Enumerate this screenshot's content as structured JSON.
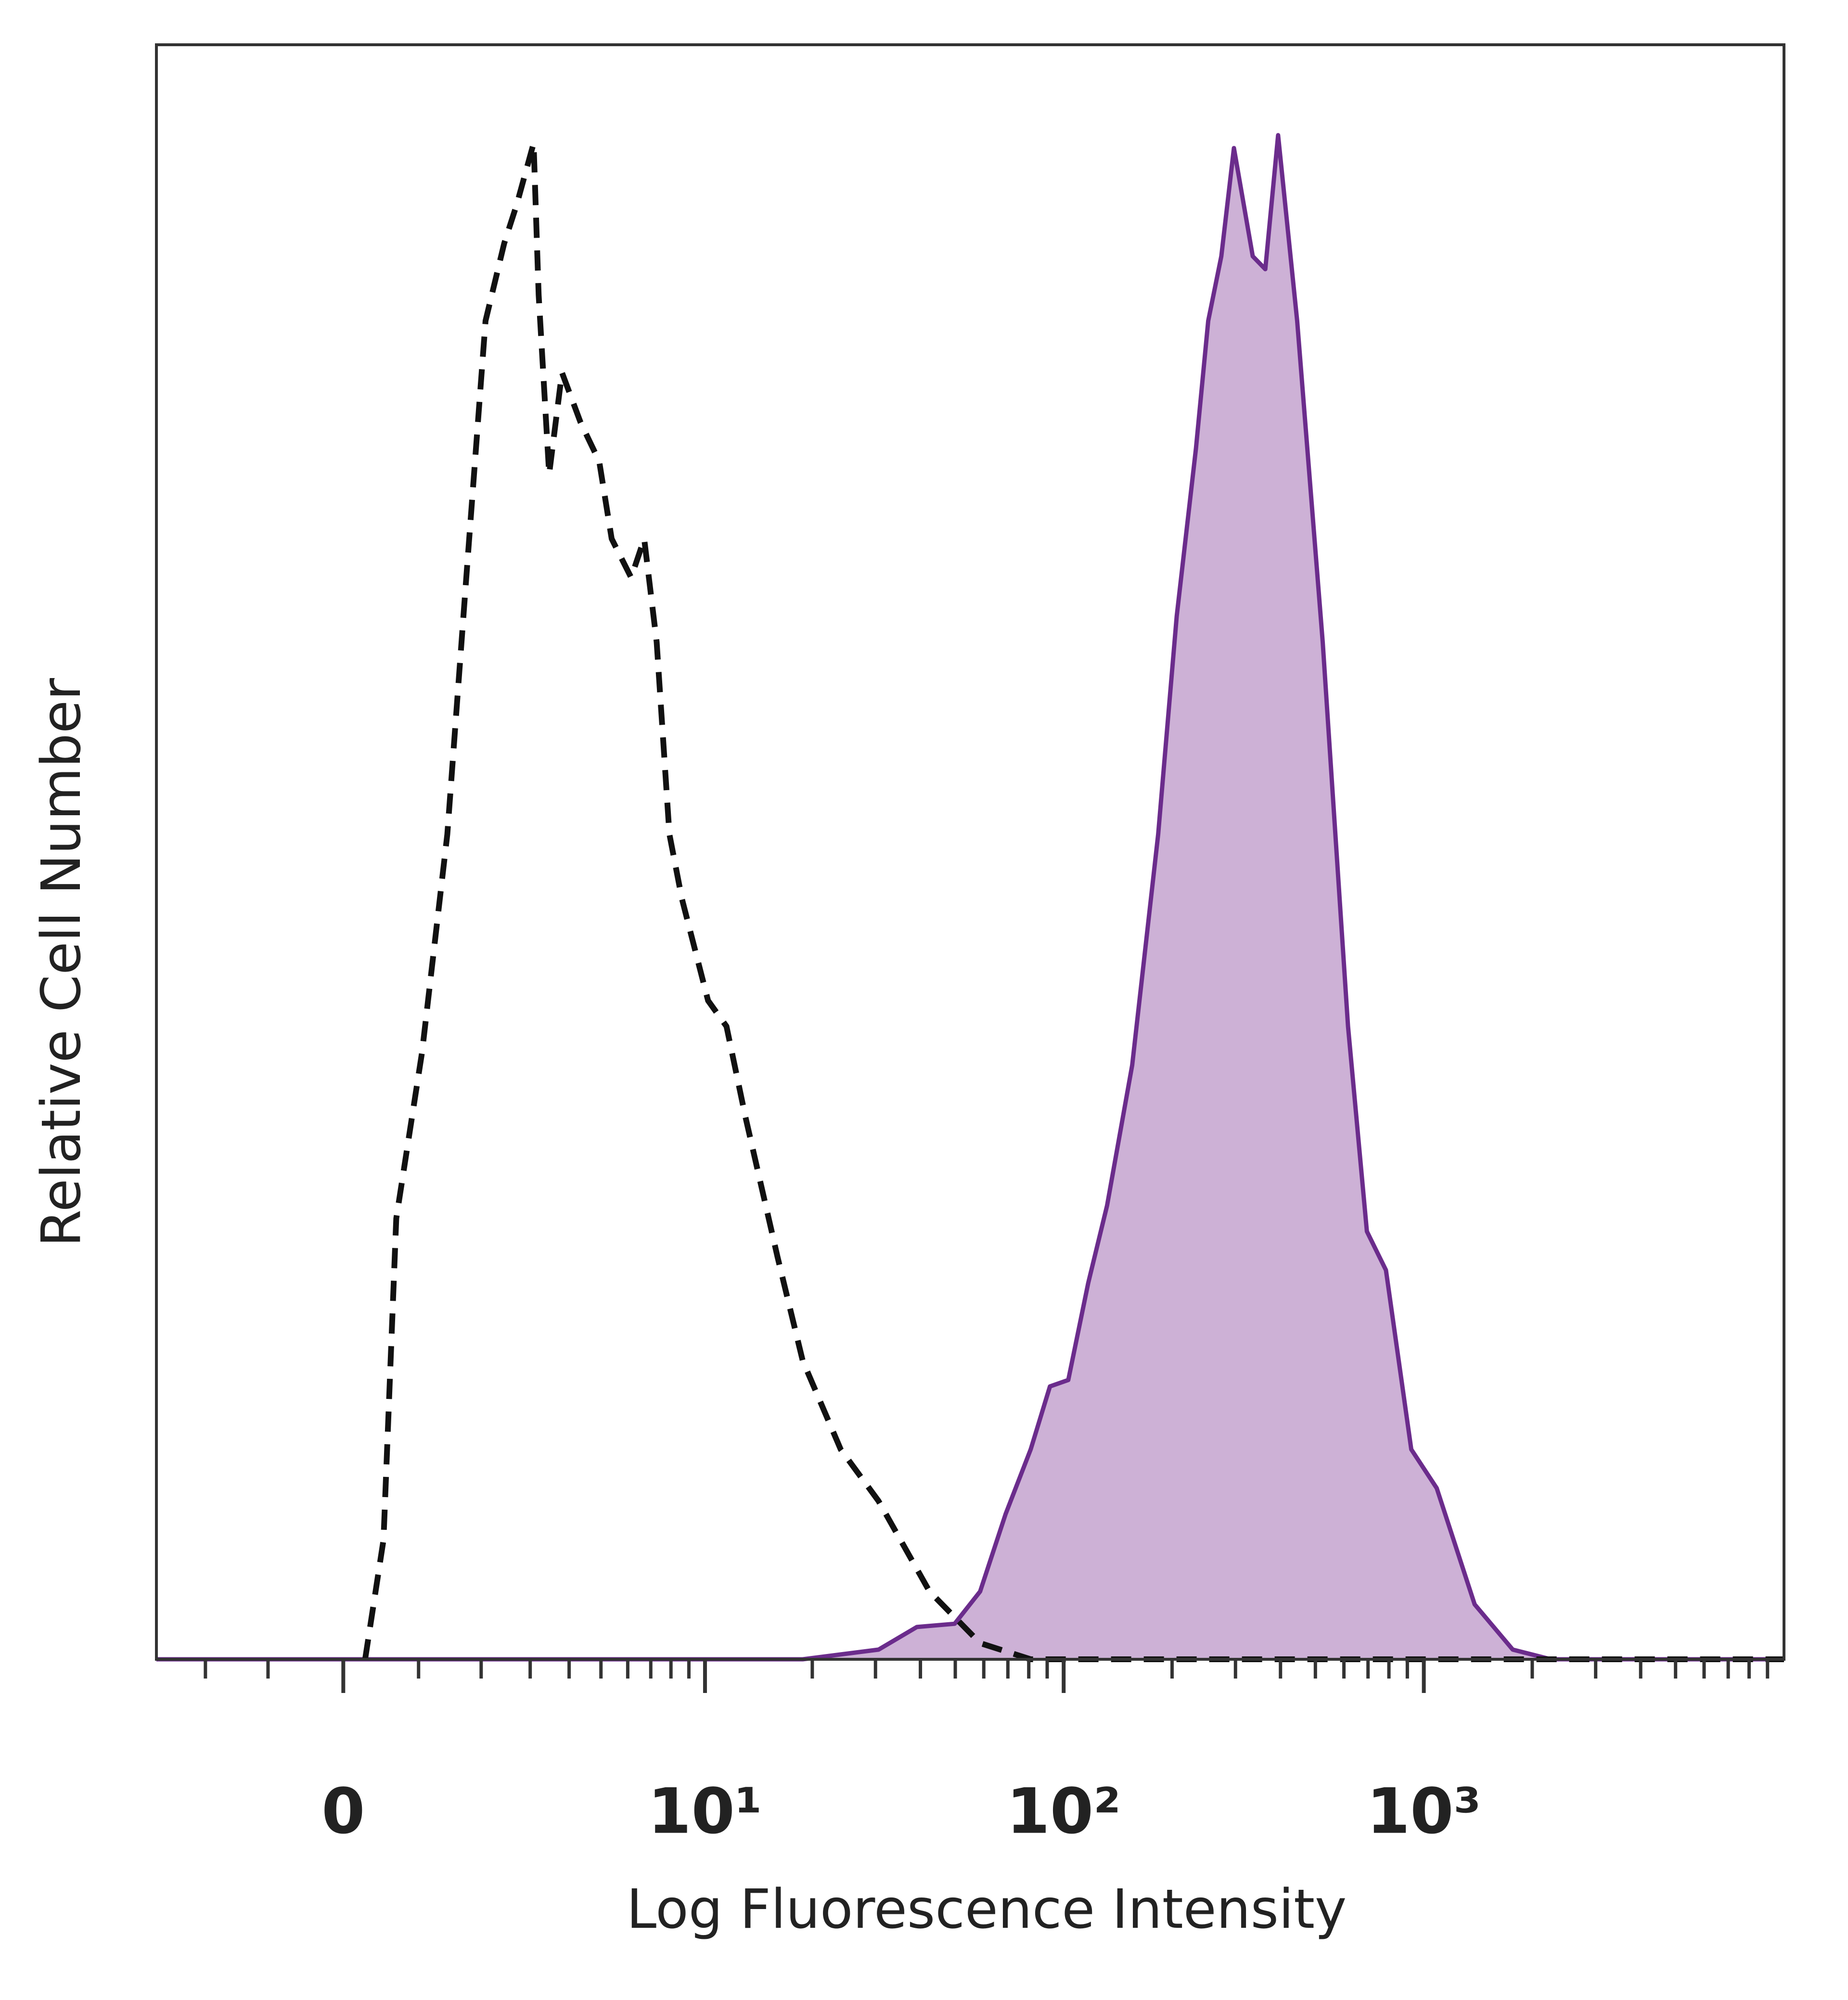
{
  "chart_data": {
    "type": "line",
    "xlabel": "Log Fluorescence Intensity",
    "ylabel": "Relative Cell Number",
    "xscale": "biexponential",
    "xlim": [
      -3,
      10000
    ],
    "ylim": [
      0,
      100
    ],
    "xticks": [
      0,
      {
        "value": 10,
        "label": "10¹"
      },
      {
        "value": 100,
        "label": "10²"
      },
      {
        "value": 1000,
        "label": "10³"
      }
    ],
    "xminorticks": [
      -2,
      -1,
      1,
      2,
      3,
      4,
      5,
      6,
      7,
      8,
      9,
      20,
      30,
      40,
      50,
      60,
      70,
      80,
      90,
      200,
      300,
      400,
      500,
      600,
      700,
      800,
      900,
      2000,
      3000,
      4000,
      5000,
      6000,
      7000,
      8000,
      9000
    ],
    "series": [
      {
        "color": "#6b2c8c",
        "fill": "#cdb1d6",
        "linestyle": "solid",
        "x": [
          -3,
          18.8,
          30.6,
          39.1,
          49.8,
          58.6,
          69,
          81,
          91.6,
          103,
          117,
          132,
          155,
          183,
          206,
          233,
          252,
          274,
          297,
          335,
          363,
          394,
          445,
          524,
          616,
          695,
          785,
          923,
          1086,
          1384,
          1766,
          2252,
          10000
        ],
        "values": [
          0,
          0,
          0.6,
          2,
          2.2,
          4.2,
          9,
          13,
          16.9,
          17.3,
          23.3,
          28.1,
          36.8,
          51.1,
          64.6,
          75,
          82.9,
          86.9,
          93.6,
          86.9,
          86.1,
          94.4,
          82.9,
          63,
          39.2,
          26.5,
          24.1,
          13,
          10.6,
          3.4,
          0.6,
          0,
          0
        ]
      },
      {
        "color": "#111111",
        "linestyle": "dashed",
        "x": [
          0.28,
          0.52,
          0.69,
          1.05,
          1.43,
          1.74,
          2.08,
          2.44,
          2.7,
          3.08,
          3.2,
          3.46,
          3.8,
          4.34,
          4.94,
          5.38,
          6.14,
          6.7,
          7.28,
          7.92,
          8.6,
          10.2,
          11.5,
          13,
          16,
          18.8,
          24,
          30.6,
          42.4,
          58.6,
          81,
          10000
        ],
        "values": [
          0,
          7.4,
          27.3,
          37.6,
          51.1,
          67,
          82.9,
          87.7,
          90.1,
          93.9,
          84.5,
          73.4,
          79.7,
          76.6,
          74.2,
          69.4,
          67,
          69.4,
          63,
          51.1,
          47.1,
          40.8,
          39.2,
          33.6,
          24.9,
          18.5,
          13,
          9.8,
          4.2,
          1,
          0,
          0
        ]
      }
    ]
  }
}
